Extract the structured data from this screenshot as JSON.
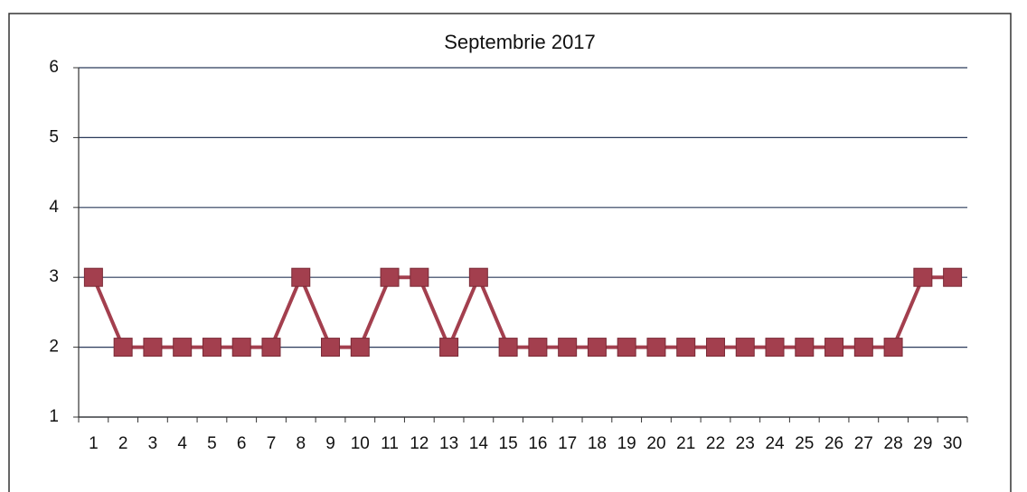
{
  "chart_data": {
    "type": "line",
    "title": "Septembrie 2017",
    "categories": [
      "1",
      "2",
      "3",
      "4",
      "5",
      "6",
      "7",
      "8",
      "9",
      "10",
      "11",
      "12",
      "13",
      "14",
      "15",
      "16",
      "17",
      "18",
      "19",
      "20",
      "21",
      "22",
      "23",
      "24",
      "25",
      "26",
      "27",
      "28",
      "29",
      "30"
    ],
    "series": [
      {
        "name": "Septembrie 2017",
        "color": "#a33f4e",
        "values": [
          3,
          2,
          2,
          2,
          2,
          2,
          2,
          3,
          2,
          2,
          3,
          3,
          2,
          3,
          2,
          2,
          2,
          2,
          2,
          2,
          2,
          2,
          2,
          2,
          2,
          2,
          2,
          2,
          3,
          3
        ]
      }
    ],
    "ylim": [
      1,
      6
    ],
    "yticks": [
      1,
      2,
      3,
      4,
      5,
      6
    ],
    "grid": true
  }
}
